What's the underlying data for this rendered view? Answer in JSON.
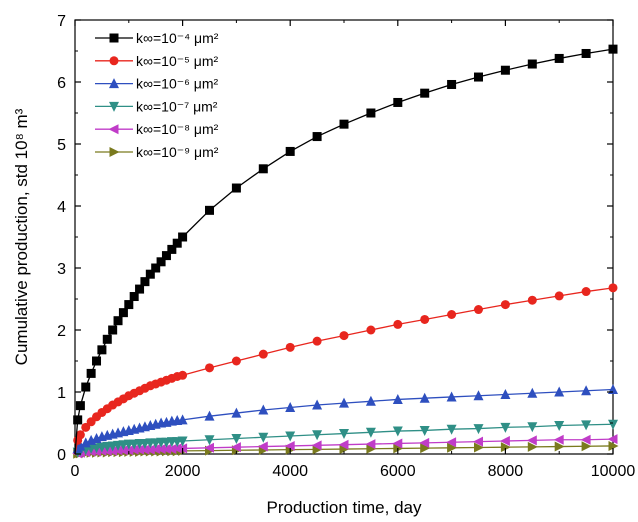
{
  "chart_data": {
    "type": "line",
    "xlabel": "Production time, day",
    "ylabel": "Cumulative production, std 10⁸ m³",
    "xlim": [
      0,
      10000
    ],
    "ylim": [
      0,
      7
    ],
    "xticks": [
      "0",
      "2000",
      "4000",
      "6000",
      "8000",
      "10000"
    ],
    "yticks": [
      "0",
      "1",
      "2",
      "3",
      "4",
      "5",
      "6",
      "7"
    ],
    "grid": false,
    "legend_position": "top-left",
    "x": [
      0,
      50,
      100,
      200,
      300,
      400,
      500,
      600,
      700,
      800,
      900,
      1000,
      1100,
      1200,
      1300,
      1400,
      1500,
      1600,
      1700,
      1800,
      1900,
      2000,
      2500,
      3000,
      3500,
      4000,
      4500,
      5000,
      5500,
      6000,
      6500,
      7000,
      7500,
      8000,
      8500,
      9000,
      9500,
      10000
    ],
    "series": [
      {
        "name": "k∞=10⁻⁴ μm²",
        "color": "#000000",
        "marker": "square",
        "values": [
          0.0,
          0.55,
          0.78,
          1.08,
          1.3,
          1.5,
          1.68,
          1.85,
          2.0,
          2.15,
          2.28,
          2.41,
          2.54,
          2.66,
          2.78,
          2.9,
          3.0,
          3.1,
          3.2,
          3.3,
          3.4,
          3.5,
          3.93,
          4.29,
          4.6,
          4.88,
          5.12,
          5.32,
          5.5,
          5.67,
          5.82,
          5.96,
          6.08,
          6.19,
          6.29,
          6.38,
          6.46,
          6.53
        ]
      },
      {
        "name": "k∞=10⁻⁵ μm²",
        "color": "#e8261e",
        "marker": "circle",
        "values": [
          0.0,
          0.22,
          0.31,
          0.43,
          0.52,
          0.6,
          0.67,
          0.73,
          0.79,
          0.84,
          0.89,
          0.94,
          0.98,
          1.02,
          1.06,
          1.1,
          1.13,
          1.16,
          1.19,
          1.22,
          1.25,
          1.27,
          1.39,
          1.5,
          1.61,
          1.72,
          1.82,
          1.91,
          2.0,
          2.09,
          2.17,
          2.25,
          2.33,
          2.41,
          2.48,
          2.55,
          2.62,
          2.68
        ]
      },
      {
        "name": "k∞=10⁻⁶ μm²",
        "color": "#2e4fbf",
        "marker": "triangle-up",
        "values": [
          0.0,
          0.09,
          0.13,
          0.18,
          0.22,
          0.25,
          0.28,
          0.3,
          0.32,
          0.34,
          0.36,
          0.38,
          0.4,
          0.42,
          0.44,
          0.46,
          0.48,
          0.5,
          0.51,
          0.53,
          0.54,
          0.55,
          0.61,
          0.66,
          0.71,
          0.75,
          0.79,
          0.82,
          0.85,
          0.88,
          0.9,
          0.92,
          0.94,
          0.96,
          0.98,
          1.0,
          1.02,
          1.04
        ]
      },
      {
        "name": "k∞=10⁻⁷ μm²",
        "color": "#2f8f86",
        "marker": "triangle-down",
        "values": [
          0.0,
          0.03,
          0.05,
          0.07,
          0.09,
          0.1,
          0.11,
          0.12,
          0.13,
          0.14,
          0.15,
          0.16,
          0.16,
          0.17,
          0.17,
          0.18,
          0.18,
          0.19,
          0.19,
          0.2,
          0.2,
          0.21,
          0.23,
          0.25,
          0.27,
          0.29,
          0.31,
          0.33,
          0.35,
          0.37,
          0.38,
          0.4,
          0.41,
          0.43,
          0.44,
          0.46,
          0.47,
          0.48
        ]
      },
      {
        "name": "k∞=10⁻⁸ μm²",
        "color": "#c03cc8",
        "marker": "triangle-left",
        "values": [
          0.0,
          0.01,
          0.02,
          0.03,
          0.04,
          0.04,
          0.05,
          0.05,
          0.05,
          0.06,
          0.06,
          0.06,
          0.07,
          0.07,
          0.07,
          0.07,
          0.08,
          0.08,
          0.08,
          0.08,
          0.09,
          0.09,
          0.1,
          0.11,
          0.12,
          0.13,
          0.14,
          0.15,
          0.16,
          0.17,
          0.18,
          0.19,
          0.2,
          0.21,
          0.22,
          0.23,
          0.23,
          0.24
        ]
      },
      {
        "name": "k∞=10⁻⁹ μm²",
        "color": "#7a7a1e",
        "marker": "triangle-right",
        "values": [
          0.0,
          0.005,
          0.01,
          0.015,
          0.02,
          0.02,
          0.025,
          0.025,
          0.03,
          0.03,
          0.03,
          0.035,
          0.035,
          0.035,
          0.04,
          0.04,
          0.04,
          0.04,
          0.045,
          0.045,
          0.045,
          0.05,
          0.055,
          0.06,
          0.065,
          0.07,
          0.075,
          0.08,
          0.085,
          0.09,
          0.095,
          0.1,
          0.105,
          0.11,
          0.115,
          0.12,
          0.125,
          0.13
        ]
      }
    ]
  }
}
